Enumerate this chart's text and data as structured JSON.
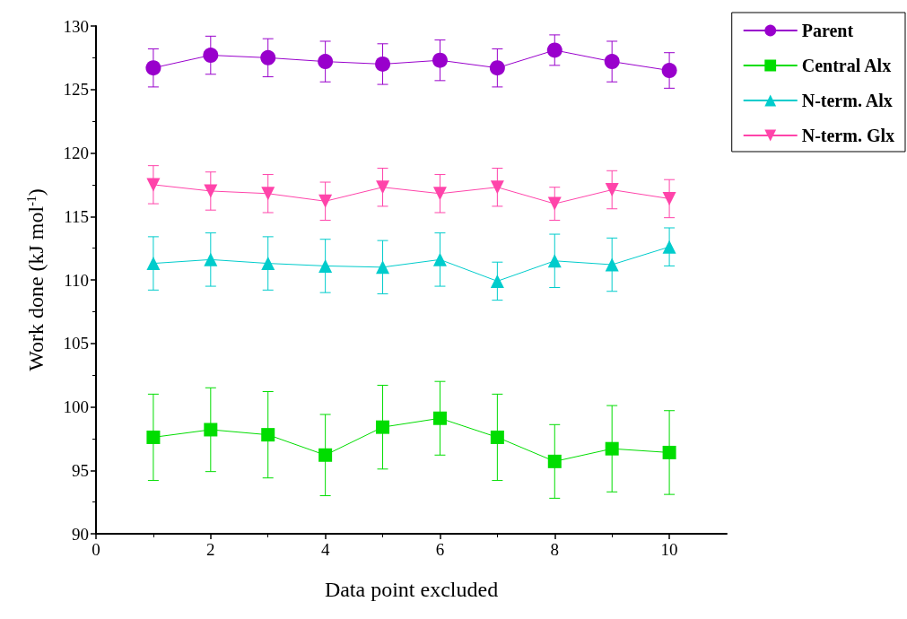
{
  "chart_data": {
    "type": "line",
    "xlabel": "Data point excluded",
    "ylabel": "Work done (kJ mol$^{-1}$)",
    "x": [
      1,
      2,
      3,
      4,
      5,
      6,
      7,
      8,
      9,
      10
    ],
    "xlim": [
      0,
      11
    ],
    "xticks": [
      0,
      2,
      4,
      6,
      8,
      10
    ],
    "ylim": [
      90,
      130
    ],
    "yticks": [
      90,
      95,
      100,
      105,
      110,
      115,
      120,
      125,
      130
    ],
    "grid": false,
    "legend": "top right",
    "series": [
      {
        "name": "Parent",
        "color": "#9900cc",
        "marker": "circle",
        "values": [
          126.7,
          127.7,
          127.5,
          127.2,
          127.0,
          127.3,
          126.7,
          128.1,
          127.2,
          126.5
        ],
        "errors": [
          1.5,
          1.5,
          1.5,
          1.6,
          1.6,
          1.6,
          1.5,
          1.2,
          1.6,
          1.4
        ]
      },
      {
        "name": "Central Alx",
        "color": "#00dd00",
        "marker": "square",
        "values": [
          97.6,
          98.2,
          97.8,
          96.2,
          98.4,
          99.1,
          97.6,
          95.7,
          96.7,
          96.4
        ],
        "errors": [
          3.4,
          3.3,
          3.4,
          3.2,
          3.3,
          2.9,
          3.4,
          2.9,
          3.4,
          3.3
        ]
      },
      {
        "name": "N-term. Alx",
        "color": "#00cccc",
        "marker": "triangle",
        "values": [
          111.3,
          111.6,
          111.3,
          111.1,
          111.0,
          111.6,
          109.9,
          111.5,
          111.2,
          112.6
        ],
        "errors": [
          2.1,
          2.1,
          2.1,
          2.1,
          2.1,
          2.1,
          1.5,
          2.1,
          2.1,
          1.5
        ]
      },
      {
        "name": "N-term. Glx",
        "color": "#ff44aa",
        "marker": "triangle-down",
        "values": [
          117.5,
          117.0,
          116.8,
          116.2,
          117.3,
          116.8,
          117.3,
          116.0,
          117.1,
          116.4
        ],
        "errors": [
          1.5,
          1.5,
          1.5,
          1.5,
          1.5,
          1.5,
          1.5,
          1.3,
          1.5,
          1.5
        ]
      }
    ]
  }
}
